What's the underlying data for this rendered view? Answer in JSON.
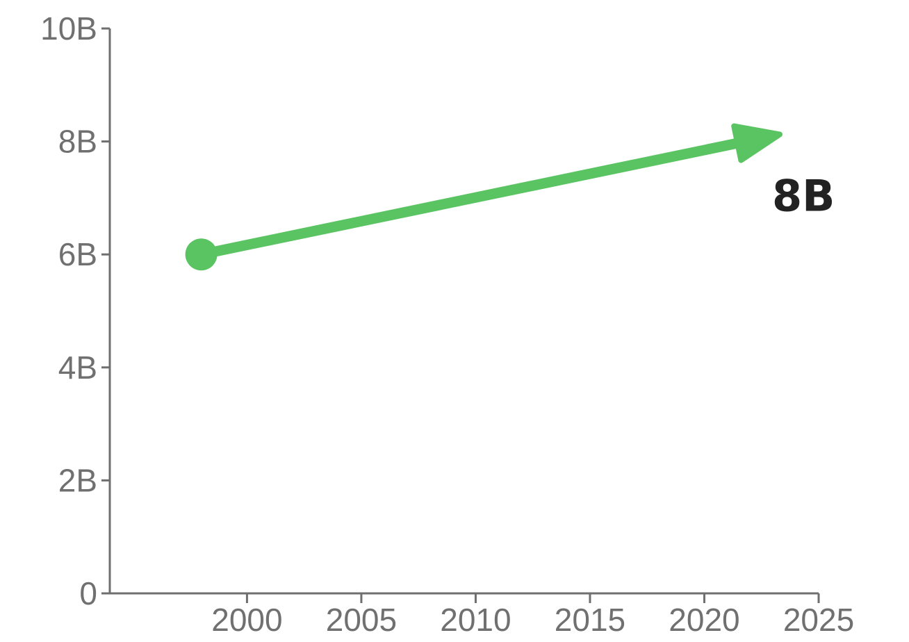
{
  "chart_data": {
    "type": "line",
    "title": "",
    "xlabel": "",
    "ylabel": "",
    "x": [
      1998,
      2023
    ],
    "series": [
      {
        "values": [
          6000000000,
          8100000000
        ],
        "color": "#5bc462"
      }
    ],
    "xlim": [
      1994,
      2025
    ],
    "ylim": [
      0,
      10000000000
    ],
    "x_ticks": [
      2000,
      2005,
      2010,
      2015,
      2020,
      2025
    ],
    "x_tick_labels": [
      "2000",
      "2005",
      "2010",
      "2015",
      "2020",
      "2025"
    ],
    "y_ticks": [
      0,
      2000000000,
      4000000000,
      6000000000,
      8000000000,
      10000000000
    ],
    "y_tick_labels": [
      "0",
      "2B",
      "4B",
      "6B",
      "8B",
      "10B"
    ],
    "grid": false,
    "legend": "none",
    "annotations": [
      {
        "text": "8B",
        "x": 2023,
        "y": 8100000000
      }
    ],
    "end_marker": "arrow",
    "start_marker": "dot",
    "axis_color": "#6f6f6f",
    "label_color": "#707070",
    "annotation_color": "#222222"
  }
}
